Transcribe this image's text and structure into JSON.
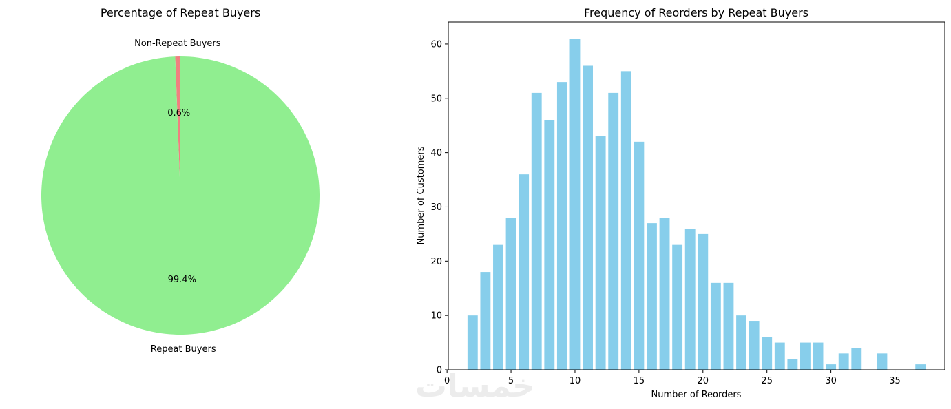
{
  "chart_data": [
    {
      "type": "pie",
      "title": "Percentage of Repeat Buyers",
      "slices": [
        {
          "label": "Non-Repeat Buyers",
          "value": 0.6,
          "pct_label": "0.6%",
          "color": "#F08080"
        },
        {
          "label": "Repeat Buyers",
          "value": 99.4,
          "pct_label": "99.4%",
          "color": "#90EE90"
        }
      ],
      "start_angle_deg": 90,
      "direction": "counterclockwise"
    },
    {
      "type": "bar",
      "title": "Frequency of Reorders by Repeat Buyers",
      "xlabel": "Number of Reorders",
      "ylabel": "Number of Customers",
      "bar_color": "#87CEEB",
      "x": [
        2,
        3,
        4,
        5,
        6,
        7,
        8,
        9,
        10,
        11,
        12,
        13,
        14,
        15,
        16,
        17,
        18,
        19,
        20,
        21,
        22,
        23,
        24,
        25,
        26,
        27,
        28,
        29,
        30,
        31,
        32,
        34,
        37
      ],
      "values": [
        10,
        18,
        23,
        28,
        36,
        51,
        46,
        53,
        61,
        56,
        43,
        51,
        55,
        42,
        27,
        28,
        23,
        26,
        25,
        16,
        16,
        10,
        9,
        6,
        5,
        2,
        5,
        5,
        1,
        3,
        4,
        3,
        1
      ],
      "xlim": [
        0.1,
        38.9
      ],
      "ylim": [
        0,
        64.05
      ],
      "xticks": [
        0,
        5,
        10,
        15,
        20,
        25,
        30,
        35
      ],
      "yticks": [
        0,
        10,
        20,
        30,
        40,
        50,
        60
      ],
      "grid": false
    }
  ],
  "watermark": "خمسات"
}
